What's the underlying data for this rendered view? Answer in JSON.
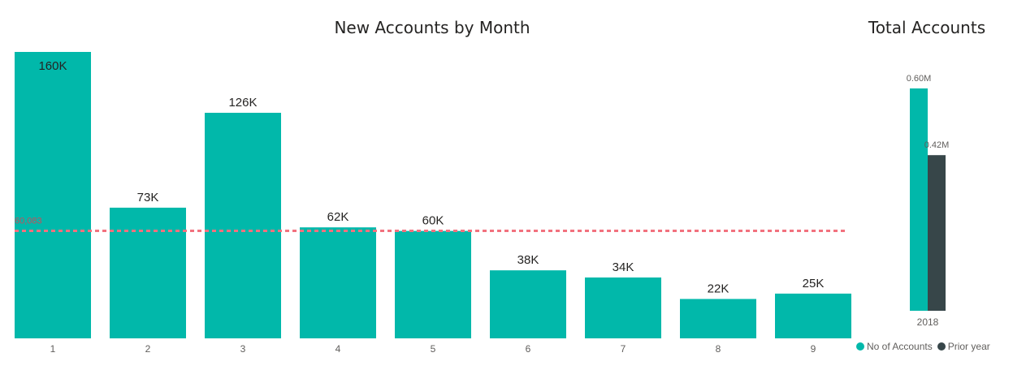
{
  "chart_data": [
    {
      "type": "bar",
      "title": "New Accounts by Month",
      "categories": [
        "1",
        "2",
        "3",
        "4",
        "5",
        "6",
        "7",
        "8",
        "9"
      ],
      "values": [
        160000,
        73000,
        126000,
        62000,
        60000,
        38000,
        34000,
        22000,
        25000
      ],
      "data_labels": [
        "160K",
        "73K",
        "126K",
        "62K",
        "60K",
        "38K",
        "34K",
        "22K",
        "25K"
      ],
      "ylim": [
        0,
        160000
      ],
      "grid": false,
      "color": "#01B8AA",
      "reference_line": {
        "value": 60083,
        "label": "60,083",
        "color": "#F2717E",
        "style": "dashed"
      }
    },
    {
      "type": "bar",
      "title": "Total Accounts",
      "categories": [
        "2018"
      ],
      "series": [
        {
          "name": "No of Accounts",
          "values": [
            600000
          ],
          "data_labels": [
            "0.60M"
          ],
          "color": "#01B8AA"
        },
        {
          "name": "Prior year",
          "values": [
            420000
          ],
          "data_labels": [
            "0.42M"
          ],
          "color": "#374649"
        }
      ],
      "ylim": [
        0,
        600000
      ],
      "grid": false,
      "legend_position": "bottom"
    }
  ]
}
